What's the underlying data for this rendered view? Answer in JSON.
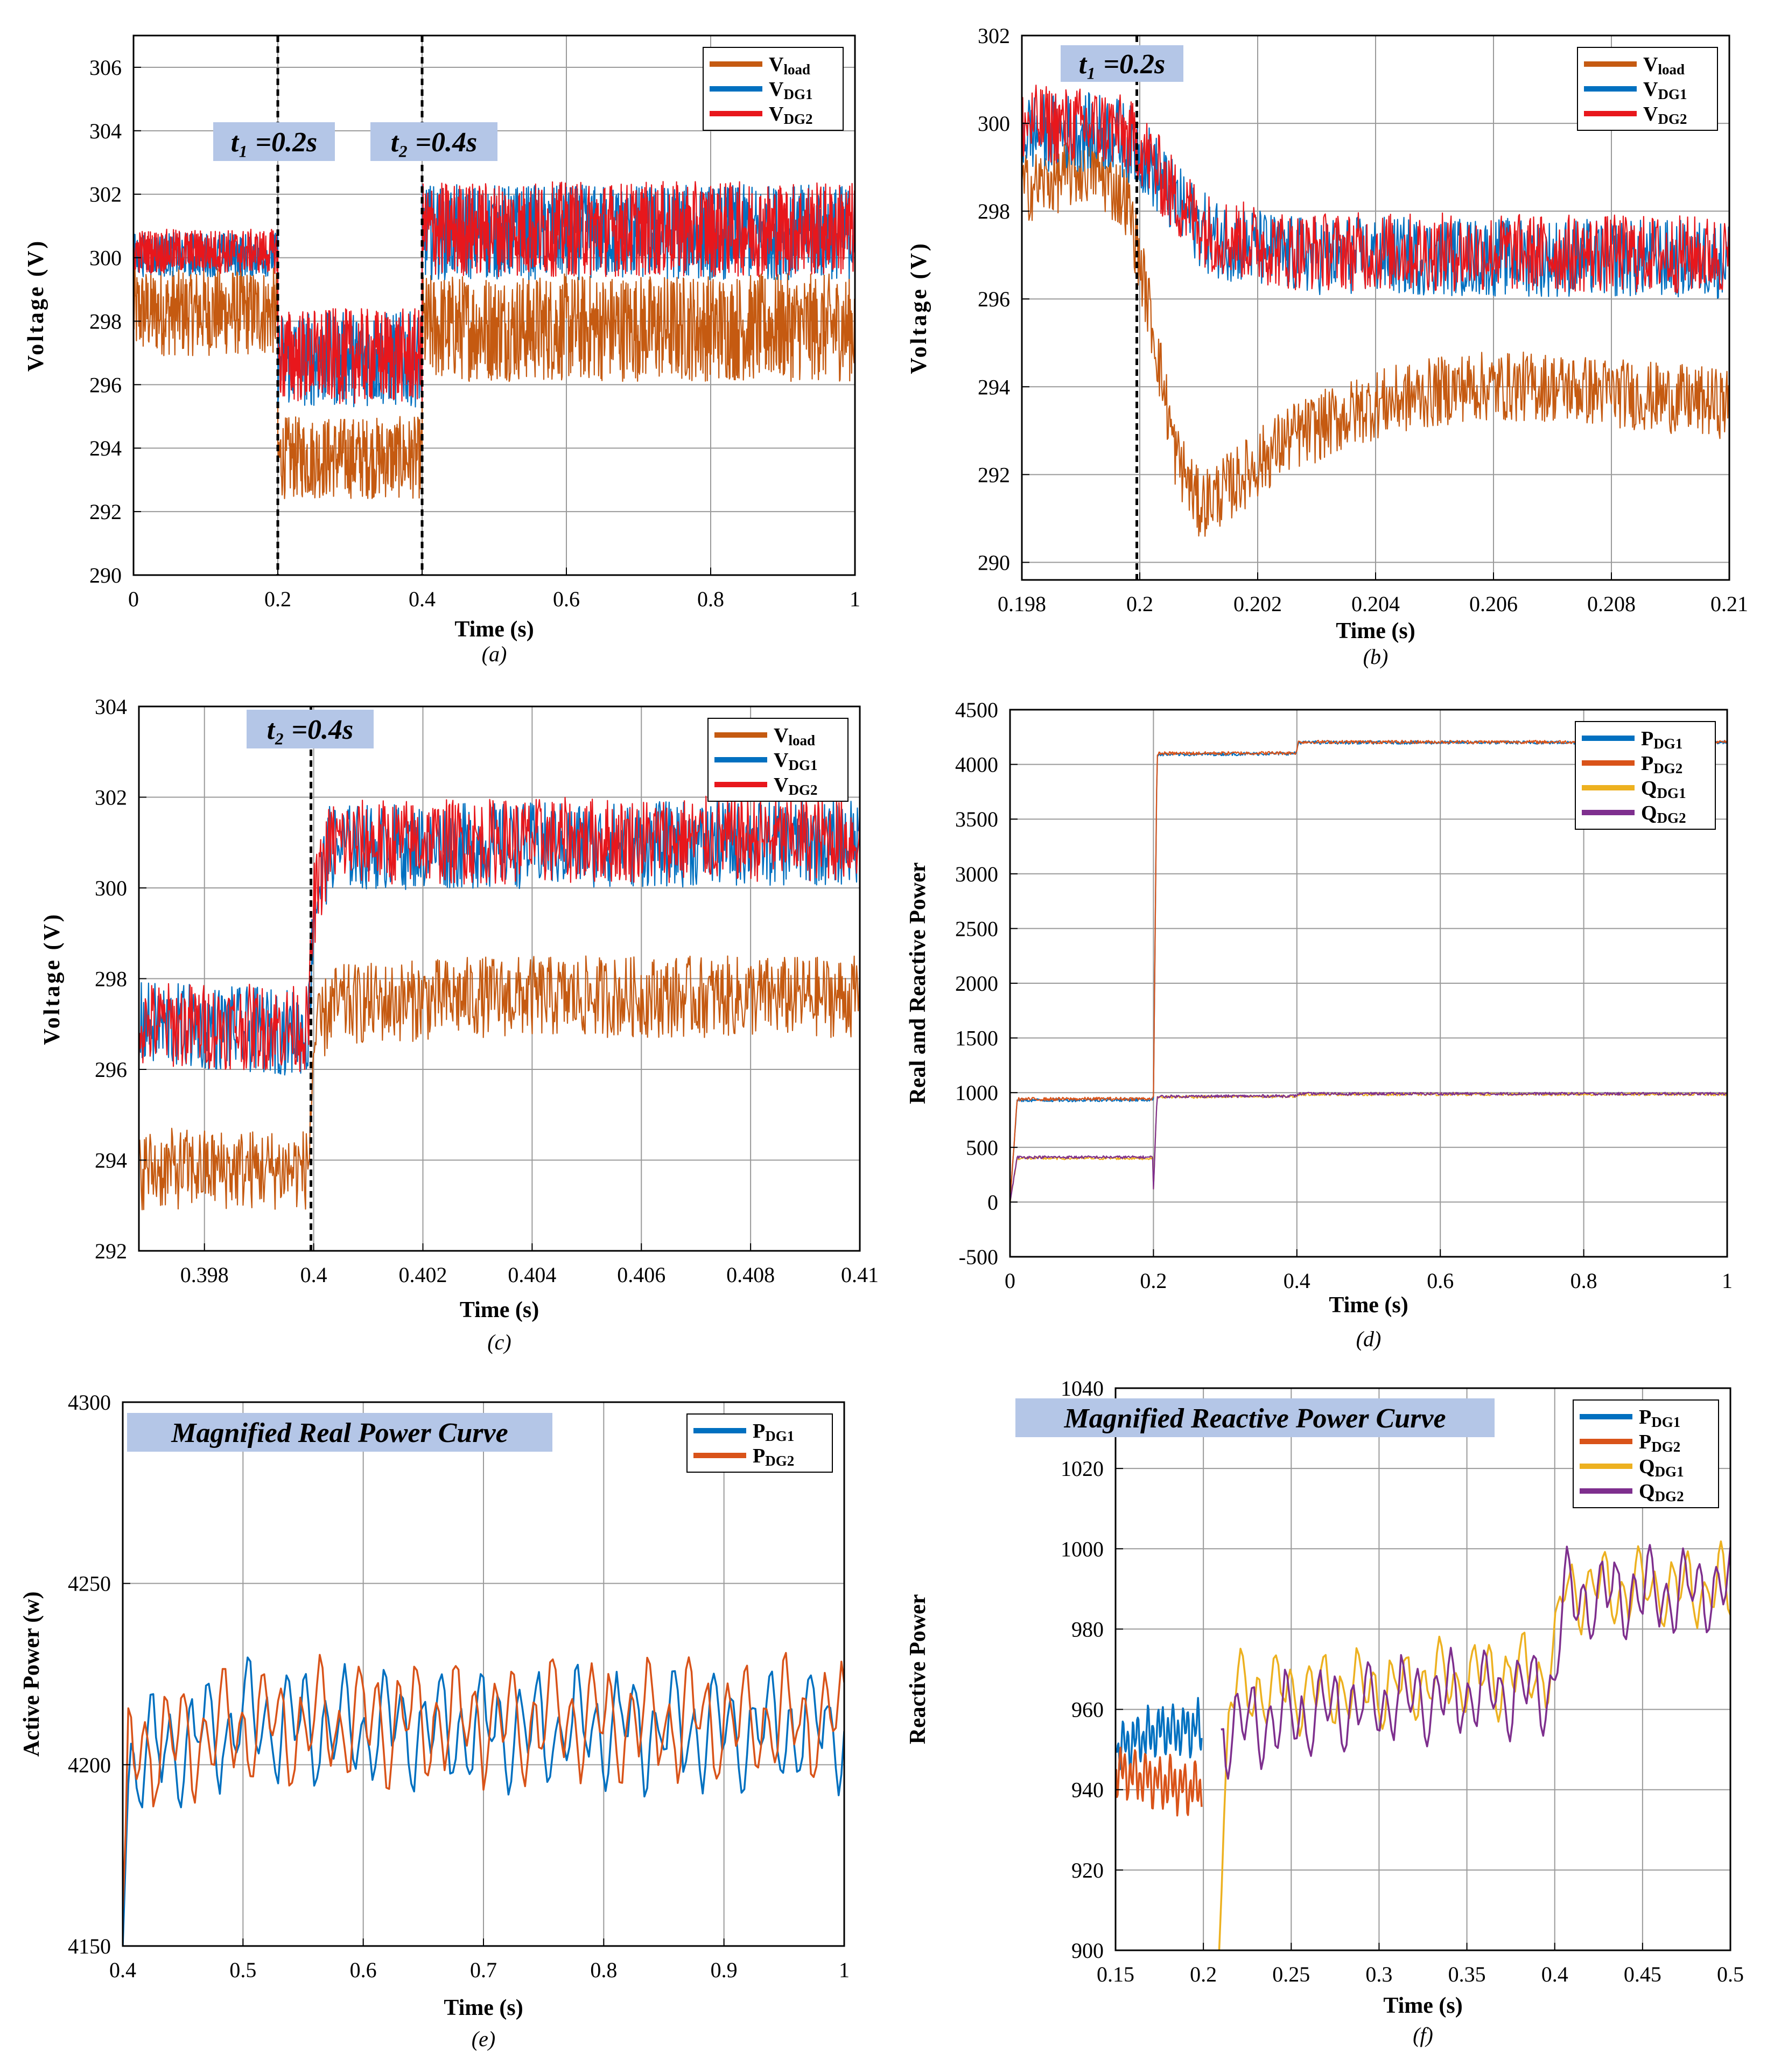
{
  "colors": {
    "vload": "#C55A11",
    "vdg1": "#0070C0",
    "vdg2": "#E8171C",
    "pdg1": "#0070C0",
    "pdg2": "#D95319",
    "qdg1": "#EDB120",
    "qdg2": "#7E2F8E",
    "annotation_bg": "#B4C6E7",
    "grid": "#9a9a9a"
  },
  "chart_data": [
    {
      "id": "a",
      "type": "line",
      "caption": "(a)",
      "xlabel": "Time (s)",
      "ylabel": "Voltage (V)",
      "xlim": [
        0,
        1
      ],
      "ylim": [
        290,
        307
      ],
      "xticks": [
        0,
        0.2,
        0.4,
        0.6,
        0.8,
        1
      ],
      "xtick_labels": [
        "0",
        "0.2",
        "0.4",
        "0.6",
        "0.8",
        "1"
      ],
      "yticks": [
        290,
        292,
        294,
        296,
        298,
        300,
        302,
        304,
        306
      ],
      "ytick_labels": [
        "290",
        "292",
        "294",
        "296",
        "298",
        "300",
        "302",
        "304",
        "306"
      ],
      "grid": true,
      "legend_position": "top-right",
      "events": [
        {
          "x": 0.2,
          "label": "t₁ =0.2s"
        },
        {
          "x": 0.4,
          "label": "t₂ =0.4s"
        }
      ],
      "series": [
        {
          "name": "Vload",
          "legend_main": "V",
          "legend_sub": "load",
          "color_key": "vload",
          "segments": [
            {
              "x": [
                0,
                0.2
              ],
              "level": 298.3,
              "band": 2.8
            },
            {
              "x": [
                0.2,
                0.4
              ],
              "level": 293.7,
              "band": 2.6
            },
            {
              "x": [
                0.4,
                1
              ],
              "level": 297.8,
              "band": 3.4
            }
          ]
        },
        {
          "name": "VDG1",
          "legend_main": "V",
          "legend_sub": "DG1",
          "color_key": "vdg1",
          "segments": [
            {
              "x": [
                0,
                0.2
              ],
              "level": 300.1,
              "band": 1.4
            },
            {
              "x": [
                0.2,
                0.4
              ],
              "level": 296.8,
              "band": 3.0
            },
            {
              "x": [
                0.4,
                1
              ],
              "level": 300.8,
              "band": 3.0
            }
          ]
        },
        {
          "name": "VDG2",
          "legend_main": "V",
          "legend_sub": "DG2",
          "color_key": "vdg2",
          "segments": [
            {
              "x": [
                0,
                0.2
              ],
              "level": 300.2,
              "band": 1.4
            },
            {
              "x": [
                0.2,
                0.4
              ],
              "level": 296.9,
              "band": 3.0
            },
            {
              "x": [
                0.4,
                1
              ],
              "level": 300.9,
              "band": 3.0
            }
          ]
        }
      ]
    },
    {
      "id": "b",
      "type": "line",
      "caption": "(b)",
      "xlabel": "Time (s)",
      "ylabel": "Voltage (V)",
      "xlim": [
        0.198,
        0.21
      ],
      "ylim": [
        289.6,
        302
      ],
      "xticks": [
        0.198,
        0.2,
        0.202,
        0.204,
        0.206,
        0.208,
        0.21
      ],
      "xtick_labels": [
        "0.198",
        "0.2",
        "0.202",
        "0.204",
        "0.206",
        "0.208",
        "0.21"
      ],
      "yticks": [
        290,
        292,
        294,
        296,
        298,
        300,
        302
      ],
      "ytick_labels": [
        "290",
        "292",
        "294",
        "296",
        "298",
        "300",
        "302"
      ],
      "grid": true,
      "legend_position": "top-right",
      "events": [
        {
          "x": 0.19995,
          "label": "t₁ =0.2s"
        }
      ],
      "series": [
        {
          "name": "Vload",
          "legend_main": "V",
          "legend_sub": "load",
          "color_key": "vload",
          "points": [
            [
              0.198,
              298.5
            ],
            [
              0.1992,
              299.0
            ],
            [
              0.1998,
              298.2
            ],
            [
              0.2002,
              295.5
            ],
            [
              0.2006,
              292.5
            ],
            [
              0.201,
              291.3
            ],
            [
              0.2015,
              291.7
            ],
            [
              0.2025,
              292.8
            ],
            [
              0.204,
              293.6
            ],
            [
              0.2055,
              294.0
            ],
            [
              0.207,
              294.0
            ],
            [
              0.2085,
              293.8
            ],
            [
              0.21,
              293.6
            ]
          ],
          "band": 1.6
        },
        {
          "name": "VDG1",
          "legend_main": "V",
          "legend_sub": "DG1",
          "color_key": "vdg1",
          "points": [
            [
              0.198,
              299.8
            ],
            [
              0.1995,
              299.8
            ],
            [
              0.2,
              299.4
            ],
            [
              0.2006,
              298.2
            ],
            [
              0.2012,
              297.4
            ],
            [
              0.2025,
              297.0
            ],
            [
              0.21,
              296.9
            ]
          ],
          "band": 1.8
        },
        {
          "name": "VDG2",
          "legend_main": "V",
          "legend_sub": "DG2",
          "color_key": "vdg2",
          "points": [
            [
              0.198,
              300.0
            ],
            [
              0.1995,
              299.9
            ],
            [
              0.2,
              299.5
            ],
            [
              0.2006,
              298.3
            ],
            [
              0.2012,
              297.5
            ],
            [
              0.2025,
              297.1
            ],
            [
              0.21,
              297.0
            ]
          ],
          "band": 1.8
        }
      ]
    },
    {
      "id": "c",
      "type": "line",
      "caption": "(c)",
      "xlabel": "Time (s)",
      "ylabel": "Voltage (V)",
      "xlim": [
        0.3968,
        0.41
      ],
      "ylim": [
        292,
        304
      ],
      "xticks": [
        0.398,
        0.4,
        0.402,
        0.404,
        0.406,
        0.408,
        0.41
      ],
      "xtick_labels": [
        "0.398",
        "0.4",
        "0.402",
        "0.404",
        "0.406",
        "0.408",
        "0.41"
      ],
      "yticks": [
        292,
        294,
        296,
        298,
        300,
        302,
        304
      ],
      "ytick_labels": [
        "292",
        "294",
        "296",
        "298",
        "300",
        "302",
        "304"
      ],
      "grid": true,
      "legend_position": "top-right",
      "events": [
        {
          "x": 0.39995,
          "label": "t₂ =0.4s"
        }
      ],
      "series": [
        {
          "name": "Vload",
          "legend_main": "V",
          "legend_sub": "load",
          "color_key": "vload",
          "points": [
            [
              0.3968,
              293.8
            ],
            [
              0.3999,
              293.8
            ],
            [
              0.4,
              296.5
            ],
            [
              0.4003,
              297.4
            ],
            [
              0.403,
              297.6
            ],
            [
              0.41,
              297.6
            ]
          ],
          "band": 1.8
        },
        {
          "name": "VDG1",
          "legend_main": "V",
          "legend_sub": "DG1",
          "color_key": "vdg1",
          "points": [
            [
              0.3968,
              297.0
            ],
            [
              0.3999,
              296.8
            ],
            [
              0.4,
              299.5
            ],
            [
              0.4003,
              300.9
            ],
            [
              0.41,
              301.0
            ]
          ],
          "band": 1.9
        },
        {
          "name": "VDG2",
          "legend_main": "V",
          "legend_sub": "DG2",
          "color_key": "vdg2",
          "points": [
            [
              0.3968,
              297.0
            ],
            [
              0.3999,
              296.9
            ],
            [
              0.4,
              299.6
            ],
            [
              0.4003,
              301.0
            ],
            [
              0.41,
              301.1
            ]
          ],
          "band": 1.9
        }
      ]
    },
    {
      "id": "d",
      "type": "line",
      "caption": "(d)",
      "xlabel": "Time (s)",
      "ylabel": "Real and Reactive Power",
      "xlim": [
        0,
        1
      ],
      "ylim": [
        -500,
        4500
      ],
      "xticks": [
        0,
        0.2,
        0.4,
        0.6,
        0.8,
        1
      ],
      "xtick_labels": [
        "0",
        "0.2",
        "0.4",
        "0.6",
        "0.8",
        "1"
      ],
      "yticks": [
        -500,
        0,
        500,
        1000,
        1500,
        2000,
        2500,
        3000,
        3500,
        4000,
        4500
      ],
      "ytick_labels": [
        "-500",
        "0",
        "500",
        "1000",
        "1500",
        "2000",
        "2500",
        "3000",
        "3500",
        "4000",
        "4500"
      ],
      "grid": true,
      "legend_position": "top-right",
      "series": [
        {
          "name": "PDG1",
          "legend_main": "P",
          "legend_sub": "DG1",
          "color_key": "pdg1",
          "points": [
            [
              0,
              0
            ],
            [
              0.01,
              930
            ],
            [
              0.199,
              935
            ],
            [
              0.2,
              960
            ],
            [
              0.205,
              4090
            ],
            [
              0.399,
              4100
            ],
            [
              0.402,
              4200
            ],
            [
              1,
              4200
            ]
          ],
          "band": 30
        },
        {
          "name": "PDG2",
          "legend_main": "P",
          "legend_sub": "DG2",
          "color_key": "pdg2",
          "points": [
            [
              0,
              0
            ],
            [
              0.01,
              940
            ],
            [
              0.199,
              945
            ],
            [
              0.2,
              970
            ],
            [
              0.205,
              4100
            ],
            [
              0.399,
              4105
            ],
            [
              0.402,
              4205
            ],
            [
              1,
              4205
            ]
          ],
          "band": 30
        },
        {
          "name": "QDG1",
          "legend_main": "Q",
          "legend_sub": "DG1",
          "color_key": "qdg1",
          "points": [
            [
              0,
              0
            ],
            [
              0.01,
              400
            ],
            [
              0.199,
              400
            ],
            [
              0.2,
              130
            ],
            [
              0.205,
              960
            ],
            [
              0.399,
              965
            ],
            [
              0.402,
              985
            ],
            [
              1,
              985
            ]
          ],
          "band": 25
        },
        {
          "name": "QDG2",
          "legend_main": "Q",
          "legend_sub": "DG2",
          "color_key": "qdg2",
          "points": [
            [
              0,
              0
            ],
            [
              0.01,
              410
            ],
            [
              0.199,
              410
            ],
            [
              0.2,
              120
            ],
            [
              0.205,
              965
            ],
            [
              0.399,
              970
            ],
            [
              0.402,
              990
            ],
            [
              1,
              990
            ]
          ],
          "band": 25
        }
      ]
    },
    {
      "id": "e",
      "type": "line",
      "caption": "(e)",
      "xlabel": "Time (s)",
      "ylabel": "Active Power (w)",
      "title_box": "Magnified Real Power Curve",
      "xlim": [
        0.4,
        1
      ],
      "ylim": [
        4150,
        4300
      ],
      "xticks": [
        0.4,
        0.5,
        0.6,
        0.7,
        0.8,
        0.9,
        1
      ],
      "xtick_labels": [
        "0.4",
        "0.5",
        "0.6",
        "0.7",
        "0.8",
        "0.9",
        "1"
      ],
      "yticks": [
        4150,
        4200,
        4250,
        4300
      ],
      "ytick_labels": [
        "4150",
        "4200",
        "4250",
        "4300"
      ],
      "grid": true,
      "legend_position": "top-right",
      "series": [
        {
          "name": "PDG1",
          "legend_main": "P",
          "legend_sub": "DG1",
          "color_key": "pdg1",
          "points": [
            [
              0.4,
              4150
            ],
            [
              0.405,
              4200
            ],
            [
              0.5,
              4212
            ],
            [
              0.6,
              4210
            ],
            [
              0.7,
              4210
            ],
            [
              0.8,
              4210
            ],
            [
              0.9,
              4210
            ],
            [
              1,
              4210
            ]
          ],
          "amp": 20
        },
        {
          "name": "PDG2",
          "legend_main": "P",
          "legend_sub": "DG2",
          "color_key": "pdg2",
          "points": [
            [
              0.4,
              4160
            ],
            [
              0.405,
              4205
            ],
            [
              0.5,
              4210
            ],
            [
              0.6,
              4212
            ],
            [
              0.7,
              4212
            ],
            [
              0.8,
              4212
            ],
            [
              0.9,
              4212
            ],
            [
              1,
              4212
            ]
          ],
          "amp": 20
        }
      ]
    },
    {
      "id": "f",
      "type": "line",
      "caption": "(f)",
      "xlabel": "Time (s)",
      "ylabel": "Reactive Power",
      "title_box": "Magnified Reactive Power Curve",
      "xlim": [
        0.15,
        0.5
      ],
      "ylim": [
        900,
        1040
      ],
      "xticks": [
        0.15,
        0.2,
        0.25,
        0.3,
        0.35,
        0.4,
        0.45,
        0.5
      ],
      "xtick_labels": [
        "0.15",
        "0.2",
        "0.25",
        "0.3",
        "0.35",
        "0.4",
        "0.45",
        "0.5"
      ],
      "yticks": [
        900,
        920,
        940,
        960,
        980,
        1000,
        1020,
        1040
      ],
      "ytick_labels": [
        "900",
        "920",
        "940",
        "960",
        "980",
        "1000",
        "1020",
        "1040"
      ],
      "grid": true,
      "legend_position": "top-right",
      "series": [
        {
          "name": "PDG1",
          "legend_main": "P",
          "legend_sub": "DG1",
          "color_key": "pdg1",
          "points": [
            [
              0.15,
              950
            ],
            [
              0.175,
              955
            ],
            [
              0.199,
              955
            ]
          ],
          "amp": 8
        },
        {
          "name": "PDG2",
          "legend_main": "P",
          "legend_sub": "DG2",
          "color_key": "pdg2",
          "points": [
            [
              0.15,
              945
            ],
            [
              0.175,
              942
            ],
            [
              0.199,
              940
            ]
          ],
          "amp": 8
        },
        {
          "name": "QDG1",
          "legend_main": "Q",
          "legend_sub": "DG1",
          "color_key": "qdg1",
          "points": [
            [
              0.209,
              900
            ],
            [
              0.215,
              965
            ],
            [
              0.3,
              965
            ],
            [
              0.399,
              970
            ],
            [
              0.405,
              990
            ],
            [
              0.5,
              990
            ]
          ],
          "amp": 12
        },
        {
          "name": "QDG2",
          "legend_main": "Q",
          "legend_sub": "DG2",
          "color_key": "qdg2",
          "points": [
            [
              0.21,
              955
            ],
            [
              0.3,
              962
            ],
            [
              0.399,
              965
            ],
            [
              0.405,
              988
            ],
            [
              0.5,
              990
            ]
          ],
          "amp": 13
        }
      ]
    }
  ]
}
